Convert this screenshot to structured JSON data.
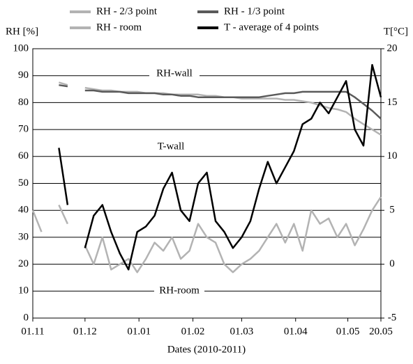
{
  "chart_data": {
    "type": "line",
    "y_label": "RH [%]",
    "y2_label": "T[°C]",
    "x_label": "Dates (2010-2011)",
    "annotations": [
      "RH-wall",
      "T-wall",
      "RH-room"
    ],
    "x": [
      0,
      5,
      10,
      15,
      20,
      25,
      30,
      35,
      40,
      45,
      50,
      55,
      60,
      65,
      70,
      75,
      80,
      85,
      90,
      95,
      100,
      105,
      110,
      115,
      120,
      125,
      130,
      135,
      140,
      145,
      150,
      155,
      160,
      165,
      170,
      175,
      180,
      185,
      190,
      195,
      200
    ],
    "xlim": [
      0,
      200
    ],
    "xticks": [
      {
        "value": 0,
        "label": "01.11"
      },
      {
        "value": 30,
        "label": "01.12"
      },
      {
        "value": 61,
        "label": "01.01"
      },
      {
        "value": 92,
        "label": "01.02"
      },
      {
        "value": 120,
        "label": "01.03"
      },
      {
        "value": 151,
        "label": "01.04"
      },
      {
        "value": 181,
        "label": "01.05"
      },
      {
        "value": 200,
        "label": "20.05"
      }
    ],
    "ylim": [
      0,
      100
    ],
    "yticks": [
      0,
      10,
      20,
      30,
      40,
      50,
      60,
      70,
      80,
      90,
      100
    ],
    "y2lim": [
      -5,
      20
    ],
    "y2ticks": [
      -5,
      0,
      5,
      10,
      15,
      20
    ],
    "grid": true,
    "series": [
      {
        "name": "RH - 2/3 point",
        "color": "#b3b3b3",
        "values": [
          null,
          null,
          null,
          87.5,
          86.5,
          null,
          85.5,
          85,
          84.5,
          84.5,
          84,
          84,
          84,
          83.5,
          83.5,
          83.5,
          83,
          83,
          83,
          83,
          82.5,
          82.5,
          82,
          82,
          81.5,
          81.5,
          81.5,
          81.5,
          81.5,
          81,
          81,
          80.5,
          80,
          79,
          78,
          77.5,
          76.5,
          74,
          72,
          70,
          68
        ]
      },
      {
        "name": "RH - 1/3 point",
        "color": "#5a5a5a",
        "values": [
          null,
          null,
          null,
          86.5,
          86,
          null,
          84.5,
          84.5,
          84,
          84,
          84,
          83.5,
          83.5,
          83.5,
          83.5,
          83,
          83,
          82.5,
          82.5,
          82,
          82,
          82,
          82,
          82,
          82,
          82,
          82,
          82.5,
          83,
          83.5,
          83.5,
          84,
          84,
          84,
          84,
          84,
          84,
          82,
          79.5,
          77,
          74
        ]
      },
      {
        "name": "RH - room",
        "color": "#b3b3b3",
        "values": [
          40,
          32,
          null,
          42,
          35,
          null,
          27,
          20,
          30,
          18,
          20,
          22,
          17,
          22,
          28,
          25,
          30,
          22,
          25,
          35,
          30,
          28,
          20,
          17,
          20,
          22,
          25,
          30,
          35,
          28,
          35,
          25,
          40,
          35,
          37,
          30,
          35,
          27,
          33,
          40,
          45
        ]
      },
      {
        "name": "T - average of 4 points",
        "color": "#000000",
        "axis": "y2",
        "values": [
          null,
          null,
          null,
          10.8,
          5.5,
          null,
          1.5,
          4.5,
          5.5,
          3,
          1,
          -0.5,
          3,
          3.5,
          4.5,
          7,
          8.5,
          5,
          4,
          7.5,
          8.5,
          4,
          3,
          1.5,
          2.5,
          4,
          7,
          9.5,
          7.5,
          9,
          10.5,
          13,
          13.5,
          15,
          14,
          15.5,
          17,
          12.5,
          11,
          18.5,
          15.5
        ]
      }
    ]
  }
}
